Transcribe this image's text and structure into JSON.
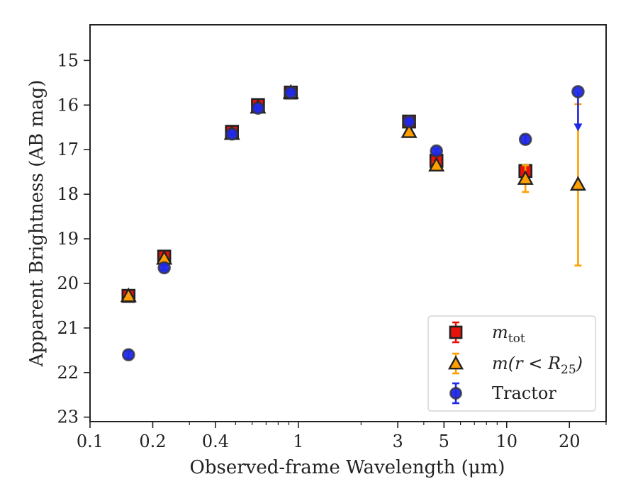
{
  "chart_data": {
    "type": "scatter",
    "xlabel": "Observed-frame Wavelength (μm)",
    "ylabel": "Apparent Brightness (AB mag)",
    "x_scale": "log",
    "xlim": [
      0.1,
      30
    ],
    "ylim": [
      23.1,
      14.2
    ],
    "x_ticks": [
      {
        "value": 0.1,
        "label": "0.1"
      },
      {
        "value": 0.2,
        "label": "0.2"
      },
      {
        "value": 0.4,
        "label": "0.4"
      },
      {
        "value": 1,
        "label": "1"
      },
      {
        "value": 3,
        "label": "3"
      },
      {
        "value": 5,
        "label": "5"
      },
      {
        "value": 10,
        "label": "10"
      },
      {
        "value": 20,
        "label": "20"
      }
    ],
    "y_ticks": [
      {
        "value": 15,
        "label": "15"
      },
      {
        "value": 16,
        "label": "16"
      },
      {
        "value": 17,
        "label": "17"
      },
      {
        "value": 18,
        "label": "18"
      },
      {
        "value": 19,
        "label": "19"
      },
      {
        "value": 20,
        "label": "20"
      },
      {
        "value": 21,
        "label": "21"
      },
      {
        "value": 22,
        "label": "22"
      },
      {
        "value": 23,
        "label": "23"
      }
    ],
    "legend_placement": "lower-right",
    "grid": false,
    "series": [
      {
        "name": "m_tot",
        "marker": "square",
        "color": "#e8120c",
        "points": [
          {
            "x": 0.153,
            "y": 20.28,
            "err": 0.03
          },
          {
            "x": 0.227,
            "y": 19.4,
            "err": 0.04
          },
          {
            "x": 0.48,
            "y": 16.6,
            "err": 0.04
          },
          {
            "x": 0.64,
            "y": 16.0,
            "err": 0.03
          },
          {
            "x": 0.92,
            "y": 15.72,
            "err": 0.03
          },
          {
            "x": 3.4,
            "y": 16.37,
            "err": 0.03
          },
          {
            "x": 4.6,
            "y": 17.25,
            "err": 0.05
          },
          {
            "x": 12.3,
            "y": 17.48,
            "err": 0.08
          }
        ]
      },
      {
        "name": "m(r < R_25)",
        "marker": "triangle",
        "color": "#ff9f00",
        "points": [
          {
            "x": 0.153,
            "y": 20.28,
            "err": 0.03
          },
          {
            "x": 0.227,
            "y": 19.44,
            "err": 0.04
          },
          {
            "x": 0.48,
            "y": 16.64,
            "err": 0.04
          },
          {
            "x": 0.64,
            "y": 16.05,
            "err": 0.03
          },
          {
            "x": 0.92,
            "y": 15.72,
            "err": 0.03
          },
          {
            "x": 3.4,
            "y": 16.6,
            "err": 0.04
          },
          {
            "x": 4.6,
            "y": 17.35,
            "err": 0.06
          },
          {
            "x": 12.3,
            "y": 17.65,
            "err": 0.3
          },
          {
            "x": 22,
            "y": 17.78,
            "err_low": 1.8,
            "err_high": 1.82
          }
        ]
      },
      {
        "name": "Tractor",
        "marker": "circle",
        "color": "#1f28e6",
        "points": [
          {
            "x": 0.153,
            "y": 21.6,
            "err": 0.08
          },
          {
            "x": 0.227,
            "y": 19.65,
            "err": 0.05
          },
          {
            "x": 0.48,
            "y": 16.65,
            "err": 0.03
          },
          {
            "x": 0.64,
            "y": 16.07,
            "err": 0.03
          },
          {
            "x": 0.92,
            "y": 15.72,
            "err": 0.03
          },
          {
            "x": 3.4,
            "y": 16.37,
            "err": 0.03
          },
          {
            "x": 4.6,
            "y": 17.03,
            "err": 0.05
          },
          {
            "x": 12.3,
            "y": 16.77,
            "err": 0.1
          },
          {
            "x": 22,
            "y": 15.7,
            "upper_limit": true
          }
        ]
      }
    ]
  },
  "legend": {
    "entries": [
      {
        "label_main": "m",
        "label_sub": "tot",
        "label_rest": ""
      },
      {
        "label_main": "m(r < R",
        "label_sub": "25",
        "label_rest": ")"
      },
      {
        "label_main": "Tractor",
        "label_sub": "",
        "label_rest": ""
      }
    ]
  }
}
